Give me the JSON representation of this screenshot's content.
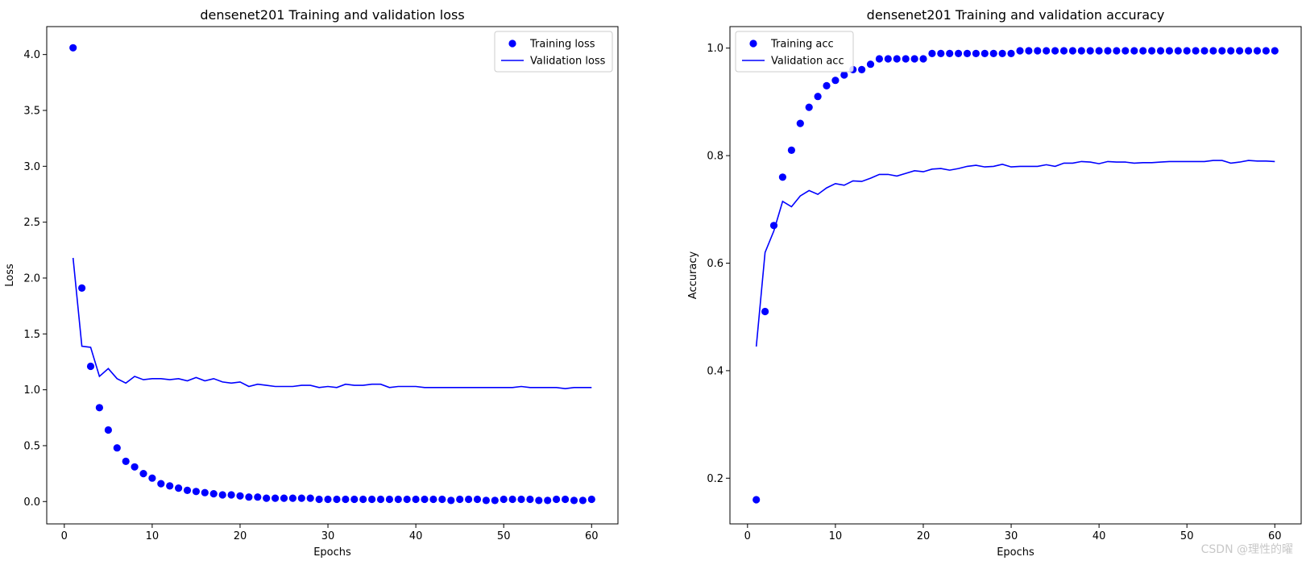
{
  "watermark": "CSDN @理性的曜",
  "colors": {
    "series": "#0000ff",
    "axis": "#000000",
    "background": "#ffffff"
  },
  "chart_data": [
    {
      "type": "scatter+line",
      "title": "densenet201 Training and validation loss",
      "xlabel": "Epochs",
      "ylabel": "Loss",
      "xlim": [
        -2,
        63
      ],
      "ylim": [
        -0.2,
        4.25
      ],
      "xticks": [
        0,
        10,
        20,
        30,
        40,
        50,
        60
      ],
      "yticks": [
        0.0,
        0.5,
        1.0,
        1.5,
        2.0,
        2.5,
        3.0,
        3.5,
        4.0
      ],
      "xtick_labels": [
        "0",
        "10",
        "20",
        "30",
        "40",
        "50",
        "60"
      ],
      "ytick_labels": [
        "0.0",
        "0.5",
        "1.0",
        "1.5",
        "2.0",
        "2.5",
        "3.0",
        "3.5",
        "4.0"
      ],
      "legend": "upper right",
      "grid": false,
      "series": [
        {
          "name": "Training loss",
          "style": "dots",
          "x": [
            1,
            2,
            3,
            4,
            5,
            6,
            7,
            8,
            9,
            10,
            11,
            12,
            13,
            14,
            15,
            16,
            17,
            18,
            19,
            20,
            21,
            22,
            23,
            24,
            25,
            26,
            27,
            28,
            29,
            30,
            31,
            32,
            33,
            34,
            35,
            36,
            37,
            38,
            39,
            40,
            41,
            42,
            43,
            44,
            45,
            46,
            47,
            48,
            49,
            50,
            51,
            52,
            53,
            54,
            55,
            56,
            57,
            58,
            59,
            60
          ],
          "y": [
            4.06,
            1.91,
            1.21,
            0.84,
            0.64,
            0.48,
            0.36,
            0.31,
            0.25,
            0.21,
            0.16,
            0.14,
            0.12,
            0.1,
            0.09,
            0.08,
            0.07,
            0.06,
            0.06,
            0.05,
            0.04,
            0.04,
            0.03,
            0.03,
            0.03,
            0.03,
            0.03,
            0.03,
            0.02,
            0.02,
            0.02,
            0.02,
            0.02,
            0.02,
            0.02,
            0.02,
            0.02,
            0.02,
            0.02,
            0.02,
            0.02,
            0.02,
            0.02,
            0.01,
            0.02,
            0.02,
            0.02,
            0.01,
            0.01,
            0.02,
            0.02,
            0.02,
            0.02,
            0.01,
            0.01,
            0.02,
            0.02,
            0.01,
            0.01,
            0.02
          ]
        },
        {
          "name": "Validation loss",
          "style": "line",
          "x": [
            1,
            2,
            3,
            4,
            5,
            6,
            7,
            8,
            9,
            10,
            11,
            12,
            13,
            14,
            15,
            16,
            17,
            18,
            19,
            20,
            21,
            22,
            23,
            24,
            25,
            26,
            27,
            28,
            29,
            30,
            31,
            32,
            33,
            34,
            35,
            36,
            37,
            38,
            39,
            40,
            41,
            42,
            43,
            44,
            45,
            46,
            47,
            48,
            49,
            50,
            51,
            52,
            53,
            54,
            55,
            56,
            57,
            58,
            59,
            60
          ],
          "y": [
            2.18,
            1.39,
            1.38,
            1.12,
            1.19,
            1.1,
            1.06,
            1.12,
            1.09,
            1.1,
            1.1,
            1.09,
            1.1,
            1.08,
            1.11,
            1.08,
            1.1,
            1.07,
            1.06,
            1.07,
            1.03,
            1.05,
            1.04,
            1.03,
            1.03,
            1.03,
            1.04,
            1.04,
            1.02,
            1.03,
            1.02,
            1.05,
            1.04,
            1.04,
            1.05,
            1.05,
            1.02,
            1.03,
            1.03,
            1.03,
            1.02,
            1.02,
            1.02,
            1.02,
            1.02,
            1.02,
            1.02,
            1.02,
            1.02,
            1.02,
            1.02,
            1.03,
            1.02,
            1.02,
            1.02,
            1.02,
            1.01,
            1.02,
            1.02,
            1.02
          ]
        }
      ]
    },
    {
      "type": "scatter+line",
      "title": "densenet201 Training and validation accuracy",
      "xlabel": "Epochs",
      "ylabel": "Accuracy",
      "xlim": [
        -2,
        63
      ],
      "ylim": [
        0.115,
        1.04
      ],
      "xticks": [
        0,
        10,
        20,
        30,
        40,
        50,
        60
      ],
      "yticks": [
        0.2,
        0.4,
        0.6,
        0.8,
        1.0
      ],
      "xtick_labels": [
        "0",
        "10",
        "20",
        "30",
        "40",
        "50",
        "60"
      ],
      "ytick_labels": [
        "0.2",
        "0.4",
        "0.6",
        "0.8",
        "1.0"
      ],
      "legend": "upper left",
      "grid": false,
      "series": [
        {
          "name": "Training acc",
          "style": "dots",
          "x": [
            1,
            2,
            3,
            4,
            5,
            6,
            7,
            8,
            9,
            10,
            11,
            12,
            13,
            14,
            15,
            16,
            17,
            18,
            19,
            20,
            21,
            22,
            23,
            24,
            25,
            26,
            27,
            28,
            29,
            30,
            31,
            32,
            33,
            34,
            35,
            36,
            37,
            38,
            39,
            40,
            41,
            42,
            43,
            44,
            45,
            46,
            47,
            48,
            49,
            50,
            51,
            52,
            53,
            54,
            55,
            56,
            57,
            58,
            59,
            60
          ],
          "y": [
            0.16,
            0.51,
            0.67,
            0.76,
            0.81,
            0.86,
            0.89,
            0.91,
            0.93,
            0.94,
            0.95,
            0.96,
            0.96,
            0.97,
            0.98,
            0.98,
            0.98,
            0.98,
            0.98,
            0.98,
            0.99,
            0.99,
            0.99,
            0.99,
            0.99,
            0.99,
            0.99,
            0.99,
            0.99,
            0.99,
            0.995,
            0.995,
            0.995,
            0.995,
            0.995,
            0.995,
            0.995,
            0.995,
            0.995,
            0.995,
            0.995,
            0.995,
            0.995,
            0.995,
            0.995,
            0.995,
            0.995,
            0.995,
            0.995,
            0.995,
            0.995,
            0.995,
            0.995,
            0.995,
            0.995,
            0.995,
            0.995,
            0.995,
            0.995,
            0.995
          ]
        },
        {
          "name": "Validation acc",
          "style": "line",
          "x": [
            1,
            2,
            3,
            4,
            5,
            6,
            7,
            8,
            9,
            10,
            11,
            12,
            13,
            14,
            15,
            16,
            17,
            18,
            19,
            20,
            21,
            22,
            23,
            24,
            25,
            26,
            27,
            28,
            29,
            30,
            31,
            32,
            33,
            34,
            35,
            36,
            37,
            38,
            39,
            40,
            41,
            42,
            43,
            44,
            45,
            46,
            47,
            48,
            49,
            50,
            51,
            52,
            53,
            54,
            55,
            56,
            57,
            58,
            59,
            60
          ],
          "y": [
            0.445,
            0.62,
            0.66,
            0.715,
            0.705,
            0.725,
            0.735,
            0.728,
            0.74,
            0.748,
            0.745,
            0.753,
            0.752,
            0.758,
            0.765,
            0.765,
            0.762,
            0.767,
            0.772,
            0.77,
            0.775,
            0.776,
            0.773,
            0.776,
            0.78,
            0.782,
            0.779,
            0.78,
            0.784,
            0.779,
            0.78,
            0.78,
            0.78,
            0.783,
            0.78,
            0.786,
            0.786,
            0.789,
            0.788,
            0.785,
            0.789,
            0.788,
            0.788,
            0.786,
            0.787,
            0.787,
            0.788,
            0.789,
            0.789,
            0.789,
            0.789,
            0.789,
            0.791,
            0.791,
            0.786,
            0.788,
            0.791,
            0.79,
            0.79,
            0.789
          ]
        }
      ]
    }
  ]
}
